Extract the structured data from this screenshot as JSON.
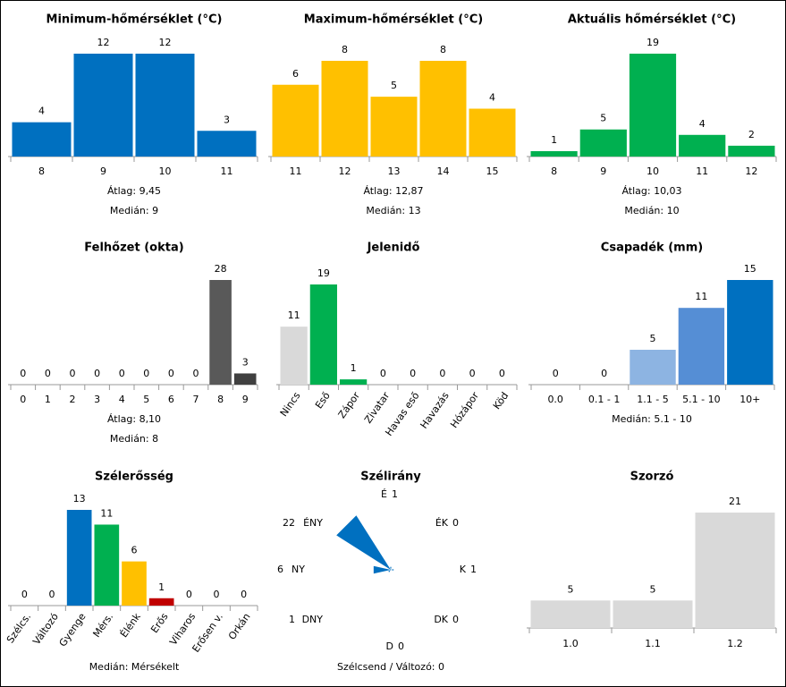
{
  "chart_data": [
    {
      "type": "bar",
      "title": "Minimum-hőmérséklet (°C)",
      "categories": [
        "8",
        "9",
        "10",
        "11"
      ],
      "values": [
        4,
        12,
        12,
        3
      ],
      "color": "#0070c0",
      "stats": [
        "Átlag: 9,45",
        "Medián: 9"
      ]
    },
    {
      "type": "bar",
      "title": "Maximum-hőmérséklet (°C)",
      "categories": [
        "11",
        "12",
        "13",
        "14",
        "15"
      ],
      "values": [
        6,
        8,
        5,
        8,
        4
      ],
      "color": "#ffc000",
      "stats": [
        "Átlag: 12,87",
        "Medián: 13"
      ]
    },
    {
      "type": "bar",
      "title": "Aktuális hőmérséklet (°C)",
      "categories": [
        "8",
        "9",
        "10",
        "11",
        "12"
      ],
      "values": [
        1,
        5,
        19,
        4,
        2
      ],
      "color": "#00b050",
      "stats": [
        "Átlag: 10,03",
        "Medián: 10"
      ]
    },
    {
      "type": "bar",
      "title": "Felhőzet (okta)",
      "categories": [
        "0",
        "1",
        "2",
        "3",
        "4",
        "5",
        "6",
        "7",
        "8",
        "9"
      ],
      "values": [
        0,
        0,
        0,
        0,
        0,
        0,
        0,
        0,
        28,
        3
      ],
      "colors": [
        "#595959",
        "#595959",
        "#595959",
        "#595959",
        "#595959",
        "#595959",
        "#595959",
        "#595959",
        "#595959",
        "#404040"
      ],
      "stats": [
        "Átlag: 8,10",
        "Medián: 8"
      ]
    },
    {
      "type": "bar",
      "title": "Jelenidő",
      "categories": [
        "Nincs",
        "Eső",
        "Zápor",
        "Zivatar",
        "Havas eső",
        "Havazás",
        "Hózápor",
        "Köd"
      ],
      "values": [
        11,
        19,
        1,
        0,
        0,
        0,
        0,
        0
      ],
      "colors": [
        "#d9d9d9",
        "#00b050",
        "#00b050",
        "#00b050",
        "#00b050",
        "#00b050",
        "#00b050",
        "#00b050"
      ]
    },
    {
      "type": "bar",
      "title": "Csapadék (mm)",
      "categories": [
        "0.0",
        "0.1 - 1",
        "1.1 - 5",
        "5.1 - 10",
        "10+"
      ],
      "values": [
        0,
        0,
        5,
        11,
        15
      ],
      "colors": [
        "#c5d9f1",
        "#c5d9f1",
        "#8db4e2",
        "#558ed5",
        "#0070c0"
      ],
      "stats": [
        "Medián: 5.1 - 10"
      ]
    },
    {
      "type": "bar",
      "title": "Szélerősség",
      "categories": [
        "Szélcs.",
        "Változó",
        "Gyenge",
        "Mérs.",
        "Élénk",
        "Erős",
        "Viharos",
        "Erősen v.",
        "Orkán"
      ],
      "values": [
        0,
        0,
        13,
        11,
        6,
        1,
        0,
        0,
        0
      ],
      "colors": [
        "#0070c0",
        "#0070c0",
        "#0070c0",
        "#00b050",
        "#ffc000",
        "#c00000",
        "#c00000",
        "#c00000",
        "#c00000"
      ],
      "stats": [
        "Medián: Mérsékelt"
      ]
    },
    {
      "type": "rose",
      "title": "Szélirány",
      "categories": [
        "É",
        "ÉK",
        "K",
        "DK",
        "D",
        "DNY",
        "NY",
        "ÉNY"
      ],
      "values": [
        1,
        0,
        1,
        0,
        0,
        1,
        6,
        22
      ],
      "color": "#0070c0",
      "stats": [
        "Szélcsend / Változó: 0"
      ]
    },
    {
      "type": "bar",
      "title": "Szorzó",
      "categories": [
        "1.0",
        "1.1",
        "1.2"
      ],
      "values": [
        5,
        5,
        21
      ],
      "color": "#d9d9d9"
    }
  ]
}
